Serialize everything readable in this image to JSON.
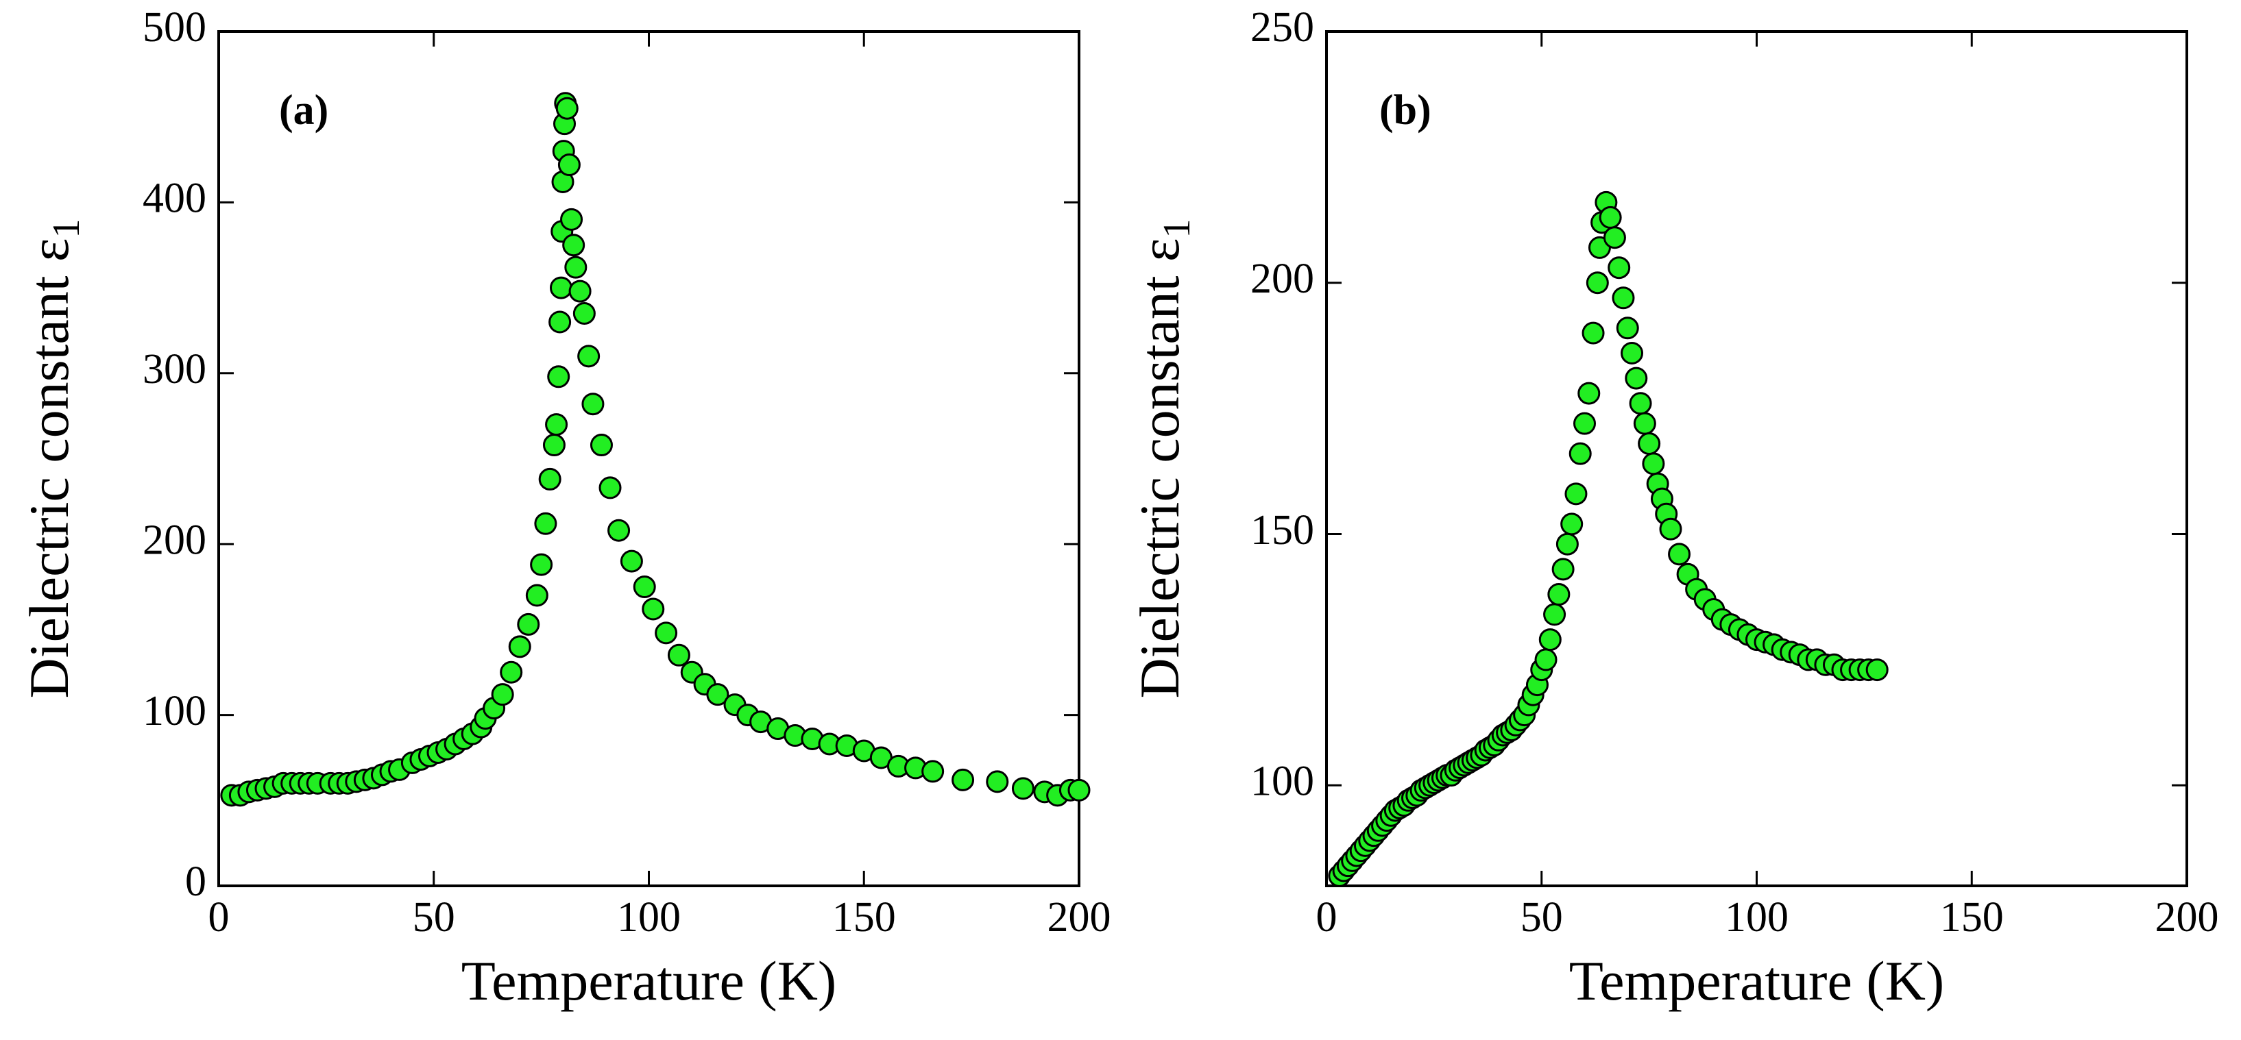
{
  "chart_data": [
    {
      "type": "scatter",
      "annotation": "(a)",
      "xlabel": "Temperature (K)",
      "ylabel": "Dielectric constant  ε",
      "ylabel_subscript": "1",
      "color": "#22ee22",
      "xlim": [
        0,
        200
      ],
      "xticks": [
        0,
        50,
        100,
        150,
        200
      ],
      "ylim": [
        0,
        500
      ],
      "yticks": [
        0,
        100,
        200,
        300,
        400,
        500
      ],
      "x": [
        3,
        5,
        7,
        9,
        11,
        13,
        15,
        17,
        19,
        21,
        23,
        26,
        28,
        30,
        32,
        34,
        36,
        38,
        40,
        42,
        45,
        47,
        49,
        51,
        53,
        55,
        57,
        59,
        61,
        62,
        64,
        66,
        68,
        70,
        72,
        74,
        75,
        76,
        77,
        78,
        78.5,
        79,
        79.3,
        79.6,
        79.8,
        80,
        80.2,
        80.4,
        80.6,
        81,
        81.5,
        82,
        82.5,
        83,
        84,
        85,
        86,
        87,
        89,
        91,
        93,
        96,
        99,
        101,
        104,
        107,
        110,
        113,
        116,
        120,
        123,
        126,
        130,
        134,
        138,
        142,
        146,
        150,
        154,
        158,
        162,
        166,
        173,
        181,
        187,
        192,
        195,
        198,
        200
      ],
      "values": [
        53,
        53,
        55,
        56,
        57,
        58,
        60,
        60,
        60,
        60,
        60,
        60,
        60,
        60,
        61,
        62,
        63,
        65,
        67,
        68,
        72,
        74,
        76,
        78,
        80,
        83,
        86,
        89,
        93,
        98,
        104,
        112,
        125,
        140,
        153,
        170,
        188,
        212,
        238,
        258,
        270,
        298,
        330,
        350,
        383,
        412,
        430,
        446,
        458,
        455,
        422,
        390,
        375,
        362,
        348,
        335,
        310,
        282,
        258,
        233,
        208,
        190,
        175,
        162,
        148,
        135,
        125,
        118,
        112,
        106,
        100,
        96,
        92,
        88,
        86,
        83,
        82,
        79,
        75,
        70,
        69,
        67,
        62,
        61,
        57,
        55,
        53,
        56,
        56
      ]
    },
    {
      "type": "scatter",
      "annotation": "(b)",
      "xlabel": "Temperature (K)",
      "ylabel": "Dielectric constant ε",
      "ylabel_subscript": "1",
      "color": "#22ee22",
      "xlim": [
        0,
        200
      ],
      "xticks": [
        0,
        50,
        100,
        150,
        200
      ],
      "ylim": [
        80,
        250
      ],
      "yticks": [
        100,
        150,
        200,
        250
      ],
      "x": [
        3,
        4,
        5,
        6,
        7,
        8,
        9,
        10,
        11,
        12,
        13,
        14,
        15,
        16,
        17,
        18,
        19,
        20,
        21,
        22,
        23,
        24,
        25,
        26,
        27,
        28,
        29,
        30,
        31,
        32,
        33,
        34,
        35,
        36,
        37,
        38,
        39,
        40,
        41,
        42,
        43,
        44,
        45,
        46,
        47,
        48,
        49,
        50,
        51,
        52,
        53,
        54,
        55,
        56,
        57,
        58,
        59,
        60,
        61,
        62,
        63,
        63.5,
        64,
        65,
        66,
        67,
        68,
        69,
        70,
        71,
        72,
        73,
        74,
        75,
        76,
        77,
        78,
        79,
        80,
        82,
        84,
        86,
        88,
        90,
        92,
        94,
        96,
        98,
        100,
        102,
        104,
        106,
        108,
        110,
        112,
        114,
        116,
        118,
        120,
        122,
        124,
        126,
        128
      ],
      "values": [
        82,
        83,
        84,
        85,
        86,
        87,
        88,
        89,
        90,
        91,
        92,
        93,
        94,
        95,
        95.5,
        96,
        97,
        97.5,
        98,
        99,
        99.5,
        100,
        100.5,
        101,
        101.5,
        102,
        102,
        103,
        103.5,
        104,
        104.5,
        105,
        105.5,
        106,
        107,
        107.5,
        108,
        109,
        110,
        110.5,
        111,
        112,
        113,
        114,
        116,
        118,
        120,
        123,
        125,
        129,
        134,
        138,
        143,
        148,
        152,
        158,
        166,
        172,
        178,
        190,
        200,
        207,
        212,
        216,
        213,
        209,
        203,
        197,
        191,
        186,
        181,
        176,
        172,
        168,
        164,
        160,
        157,
        154,
        151,
        146,
        142,
        139,
        137,
        135,
        133,
        132,
        131,
        130,
        129,
        128.5,
        128,
        127,
        126.5,
        126,
        125,
        125,
        124,
        124,
        123,
        123,
        123,
        123,
        123
      ]
    }
  ]
}
